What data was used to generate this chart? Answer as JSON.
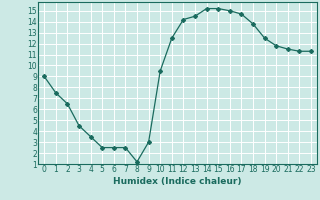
{
  "x": [
    0,
    1,
    2,
    3,
    4,
    5,
    6,
    7,
    8,
    9,
    10,
    11,
    12,
    13,
    14,
    15,
    16,
    17,
    18,
    19,
    20,
    21,
    22,
    23
  ],
  "y": [
    9,
    7.5,
    6.5,
    4.5,
    3.5,
    2.5,
    2.5,
    2.5,
    1.2,
    3.0,
    9.5,
    12.5,
    14.2,
    14.5,
    15.2,
    15.2,
    15.0,
    14.7,
    13.8,
    12.5,
    11.8,
    11.5,
    11.3,
    11.3
  ],
  "line_color": "#1a6b5e",
  "marker": "D",
  "marker_size": 2,
  "xlabel": "Humidex (Indice chaleur)",
  "xlim": [
    -0.5,
    23.5
  ],
  "ylim": [
    1,
    15.8
  ],
  "xticks": [
    0,
    1,
    2,
    3,
    4,
    5,
    6,
    7,
    8,
    9,
    10,
    11,
    12,
    13,
    14,
    15,
    16,
    17,
    18,
    19,
    20,
    21,
    22,
    23
  ],
  "yticks": [
    1,
    2,
    3,
    4,
    5,
    6,
    7,
    8,
    9,
    10,
    11,
    12,
    13,
    14,
    15
  ],
  "bg_color": "#cce9e5",
  "grid_color": "#ffffff",
  "tick_label_size": 5.5,
  "xlabel_size": 6.5,
  "linewidth": 0.9
}
